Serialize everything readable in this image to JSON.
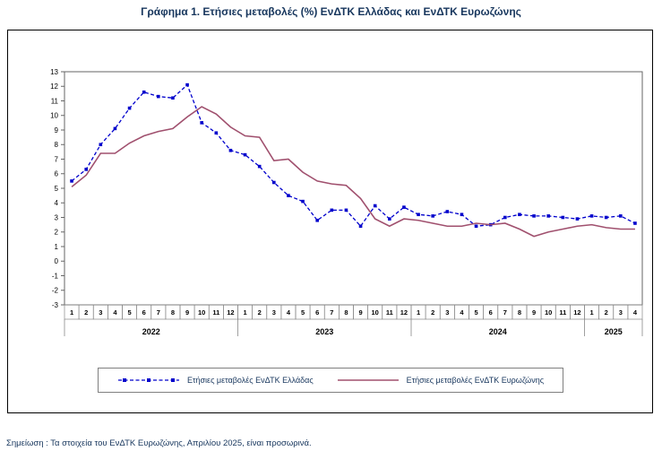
{
  "title": "Γράφημα 1. Ετήσιες μεταβολές (%) ΕνΔΤΚ Ελλάδας και ΕνΔΤΚ Ευρωζώνης",
  "footnote": "Σημείωση :  Τα στοιχεία του ΕνΔΤΚ Ευρωζώνης, Απριλίου 2025, είναι προσωρινά.",
  "legend": {
    "greece": "Ετήσιες μεταβολές ΕνΔΤΚ Ελλάδας",
    "eurozone": "Ετήσιες μεταβολές ΕνΔΤΚ Ευρωζώνης"
  },
  "colors": {
    "title_text": "#17365D",
    "legend_text": "#17365D",
    "footnote_text": "#17365D",
    "greece_line": "#0000CC",
    "eurozone_line": "#A0506E",
    "axis": "#666666",
    "grid_cells": "#888888"
  },
  "chart_data": {
    "type": "line",
    "title": "Γράφημα 1. Ετήσιες μεταβολές (%) ΕνΔΤΚ Ελλάδας και ΕνΔΤΚ Ευρωζώνης",
    "xlabel": "",
    "ylabel": "",
    "ylim": [
      -3,
      13
    ],
    "yticks": [
      -3,
      -2,
      -1,
      0,
      1,
      2,
      3,
      4,
      5,
      6,
      7,
      8,
      9,
      10,
      11,
      12,
      13
    ],
    "grid": false,
    "legend_position": "bottom",
    "x_months": [
      "1",
      "2",
      "3",
      "4",
      "5",
      "6",
      "7",
      "8",
      "9",
      "10",
      "11",
      "12",
      "1",
      "2",
      "3",
      "4",
      "5",
      "6",
      "7",
      "8",
      "9",
      "10",
      "11",
      "12",
      "1",
      "2",
      "3",
      "4",
      "5",
      "6",
      "7",
      "8",
      "9",
      "10",
      "11",
      "12",
      "1",
      "2",
      "3",
      "4"
    ],
    "year_groups": [
      {
        "year": "2022",
        "months": 12
      },
      {
        "year": "2023",
        "months": 12
      },
      {
        "year": "2024",
        "months": 12
      },
      {
        "year": "2025",
        "months": 4
      }
    ],
    "series": [
      {
        "name": "Ετήσιες μεταβολές ΕνΔΤΚ Ελλάδας",
        "style": "dashed",
        "marker": "square",
        "color": "#0000CC",
        "values": [
          5.5,
          6.3,
          8.0,
          9.1,
          10.5,
          11.6,
          11.3,
          11.2,
          12.1,
          9.5,
          8.8,
          7.6,
          7.3,
          6.5,
          5.4,
          4.5,
          4.1,
          2.8,
          3.5,
          3.5,
          2.4,
          3.8,
          2.9,
          3.7,
          3.2,
          3.1,
          3.4,
          3.2,
          2.4,
          2.5,
          3.0,
          3.2,
          3.1,
          3.1,
          3.0,
          2.9,
          3.1,
          3.0,
          3.1,
          2.6
        ]
      },
      {
        "name": "Ετήσιες μεταβολές ΕνΔΤΚ Ευρωζώνης",
        "style": "solid",
        "marker": "none",
        "color": "#A0506E",
        "values": [
          5.1,
          5.9,
          7.4,
          7.4,
          8.1,
          8.6,
          8.9,
          9.1,
          9.9,
          10.6,
          10.1,
          9.2,
          8.6,
          8.5,
          6.9,
          7.0,
          6.1,
          5.5,
          5.3,
          5.2,
          4.3,
          2.9,
          2.4,
          2.9,
          2.8,
          2.6,
          2.4,
          2.4,
          2.6,
          2.5,
          2.6,
          2.2,
          1.7,
          2.0,
          2.2,
          2.4,
          2.5,
          2.3,
          2.2,
          2.2
        ]
      }
    ]
  }
}
